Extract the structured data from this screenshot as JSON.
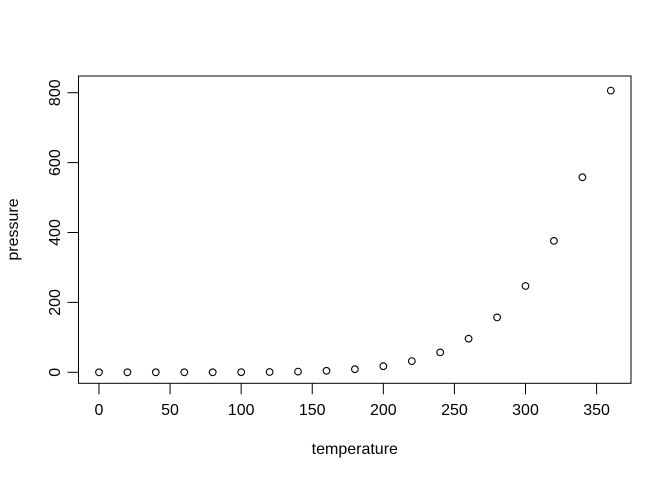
{
  "chart_data": {
    "type": "scatter",
    "title": "",
    "xlabel": "temperature",
    "ylabel": "pressure",
    "x": [
      0,
      20,
      40,
      60,
      80,
      100,
      120,
      140,
      160,
      180,
      200,
      220,
      240,
      260,
      280,
      300,
      320,
      340,
      360
    ],
    "y": [
      0.0002,
      0.0012,
      0.006,
      0.03,
      0.09,
      0.27,
      0.75,
      1.85,
      4.2,
      8.8,
      17.3,
      32.1,
      57,
      96,
      157,
      247,
      376,
      558,
      806
    ],
    "x_ticks": [
      0,
      50,
      100,
      150,
      200,
      250,
      300,
      350
    ],
    "y_ticks": [
      0,
      200,
      400,
      600,
      800
    ],
    "xlim": [
      -14.4,
      374.2
    ],
    "ylim": [
      -31.5,
      847.8
    ],
    "grid": false,
    "legend_position": "none",
    "point_style": "open-circle",
    "point_color": "#000000",
    "axis_color": "#000000",
    "background_color": "#ffffff"
  }
}
